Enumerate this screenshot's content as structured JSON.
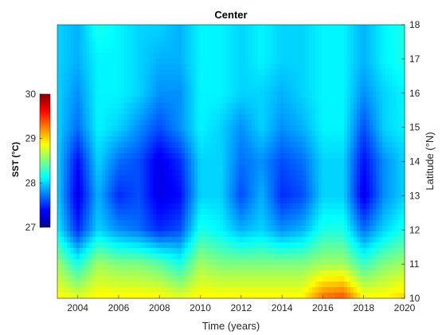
{
  "chart_data": {
    "type": "heatmap",
    "title": "Center",
    "xlabel": "Time (years)",
    "ylabel": "Latitude (°N)",
    "colorbar_label": "SST (°C)",
    "colormap": "jet",
    "xlim": [
      2003,
      2020
    ],
    "ylim": [
      10,
      18
    ],
    "clim": [
      27,
      30
    ],
    "x_ticks": [
      "2004",
      "2006",
      "2008",
      "2010",
      "2012",
      "2014",
      "2016",
      "2018",
      "2020"
    ],
    "y_ticks": [
      "10",
      "11",
      "12",
      "13",
      "14",
      "15",
      "16",
      "17",
      "18"
    ],
    "colorbar_ticks": [
      "27",
      "28",
      "29",
      "30"
    ],
    "x": [
      2003,
      2004,
      2005,
      2006,
      2007,
      2008,
      2009,
      2010,
      2011,
      2012,
      2013,
      2014,
      2015,
      2016,
      2017,
      2018,
      2019,
      2020
    ],
    "y": [
      10,
      11,
      12,
      13,
      14,
      15,
      16,
      17,
      18
    ],
    "z": [
      [
        28.9,
        28.8,
        28.9,
        28.9,
        28.9,
        28.9,
        28.8,
        28.9,
        28.9,
        28.9,
        28.9,
        28.9,
        28.9,
        29.3,
        29.4,
        28.9,
        28.9,
        29.0
      ],
      [
        28.6,
        28.2,
        28.6,
        28.5,
        28.5,
        28.4,
        28.2,
        28.6,
        28.5,
        28.5,
        28.5,
        28.5,
        28.5,
        28.6,
        28.6,
        28.3,
        28.5,
        28.6
      ],
      [
        28.1,
        27.5,
        28.0,
        27.8,
        27.7,
        27.5,
        27.6,
        28.2,
        28.1,
        27.9,
        28.0,
        27.8,
        27.9,
        28.2,
        28.2,
        27.7,
        28.0,
        28.2
      ],
      [
        28.0,
        27.3,
        27.9,
        27.5,
        27.6,
        27.3,
        27.4,
        28.0,
        28.0,
        27.6,
        27.9,
        27.5,
        27.6,
        28.0,
        28.0,
        27.3,
        27.8,
        28.0
      ],
      [
        28.0,
        27.4,
        28.0,
        27.7,
        27.6,
        27.3,
        27.5,
        28.0,
        28.0,
        27.7,
        27.8,
        27.6,
        27.7,
        28.0,
        28.0,
        27.4,
        27.8,
        28.0
      ],
      [
        28.0,
        27.7,
        28.1,
        28.0,
        27.8,
        27.6,
        27.8,
        28.1,
        28.0,
        27.8,
        28.0,
        27.8,
        27.9,
        28.1,
        28.1,
        27.6,
        28.0,
        28.1
      ],
      [
        28.0,
        27.8,
        28.1,
        28.1,
        28.0,
        27.8,
        27.8,
        28.1,
        28.1,
        28.0,
        28.0,
        27.9,
        28.0,
        28.1,
        28.1,
        27.8,
        28.0,
        28.1
      ],
      [
        28.0,
        27.9,
        28.1,
        28.1,
        28.0,
        27.9,
        27.9,
        28.1,
        28.1,
        28.0,
        28.1,
        28.0,
        28.0,
        28.1,
        28.1,
        27.9,
        28.1,
        28.2
      ],
      [
        28.0,
        27.9,
        28.2,
        28.1,
        28.0,
        28.0,
        27.9,
        28.1,
        28.1,
        28.0,
        28.1,
        28.0,
        28.0,
        28.1,
        28.1,
        27.9,
        28.1,
        28.2
      ]
    ]
  }
}
